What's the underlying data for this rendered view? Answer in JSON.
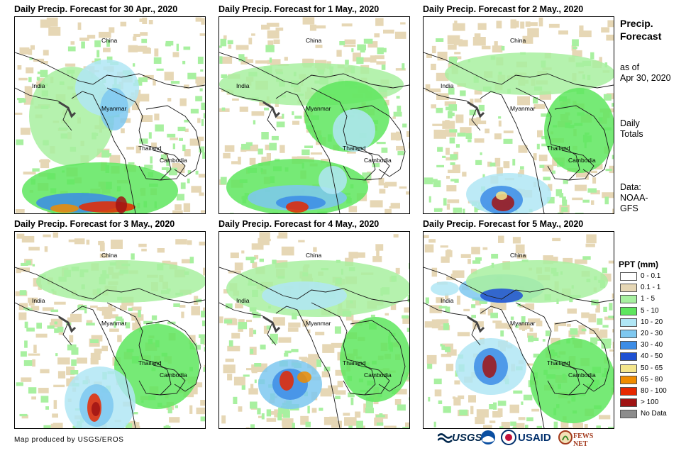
{
  "panels": [
    {
      "title": "Daily Precip. Forecast for 30 Apr., 2020"
    },
    {
      "title": "Daily Precip. Forecast for 1 May., 2020"
    },
    {
      "title": "Daily Precip. Forecast for 2 May., 2020"
    },
    {
      "title": "Daily Precip. Forecast for 3 May., 2020"
    },
    {
      "title": "Daily Precip. Forecast for 4 May., 2020"
    },
    {
      "title": "Daily Precip. Forecast for 5 May., 2020"
    }
  ],
  "map_labels": {
    "china": "China",
    "india": "India",
    "myanmar": "Myanmar",
    "thailand": "Thailand",
    "cambodia": "Cambodia"
  },
  "side": {
    "title_line1": "Precip.",
    "title_line2": "Forecast",
    "asof_line1": "as of",
    "asof_line2": "Apr 30, 2020",
    "totals_line1": "Daily",
    "totals_line2": "Totals",
    "data_line1": "Data:",
    "data_line2": "NOAA-",
    "data_line3": "GFS"
  },
  "legend": {
    "title": "PPT (mm)",
    "items": [
      {
        "label": "0 - 0.1",
        "color": "#ffffff"
      },
      {
        "label": "0.1 - 1",
        "color": "#e6d7b5"
      },
      {
        "label": "1 - 5",
        "color": "#a8f0a0"
      },
      {
        "label": "5 - 10",
        "color": "#5ee65e"
      },
      {
        "label": "10 - 20",
        "color": "#b0e6f5"
      },
      {
        "label": "20 - 30",
        "color": "#7ec8f0"
      },
      {
        "label": "30 - 40",
        "color": "#3c8ce6"
      },
      {
        "label": "40 - 50",
        "color": "#1e50d2"
      },
      {
        "label": "50 - 65",
        "color": "#f5e68c"
      },
      {
        "label": "65 - 80",
        "color": "#f08c00"
      },
      {
        "label": "80 - 100",
        "color": "#e62800"
      },
      {
        "label": "> 100",
        "color": "#a01414"
      },
      {
        "label": "No Data",
        "color": "#8c8c8c"
      }
    ]
  },
  "footer": {
    "credit": "Map produced by USGS/EROS"
  },
  "logos": {
    "usgs": "USGS",
    "usaid": "USAID",
    "fewsnet": "FEWS NET"
  }
}
